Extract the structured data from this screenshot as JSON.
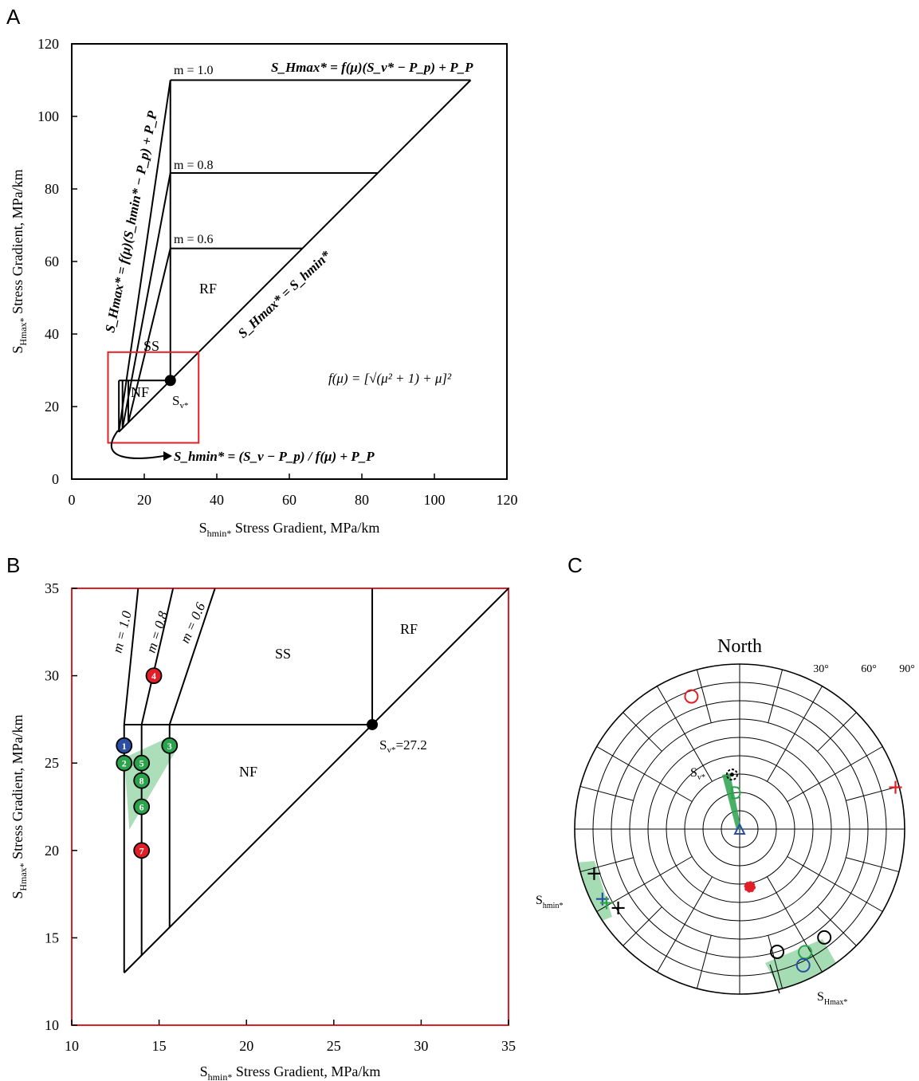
{
  "panels": {
    "A": "A",
    "B": "B",
    "C": "C"
  },
  "colors": {
    "red": "#e21f26",
    "green": "#2ba24c",
    "green_fill": "#8fd3a1",
    "blue": "#2d4fa3",
    "black": "#000000"
  },
  "chart_data": [
    {
      "panel": "A",
      "type": "line",
      "xlabel_main": "S",
      "xlabel_sub": "hmin*",
      "xlabel_rest": " Stress Gradient, MPa/km",
      "ylabel_main": "S",
      "ylabel_sub": "Hmax*",
      "ylabel_rest": " Stress Gradient, MPa/km",
      "xlim": [
        0,
        120
      ],
      "ylim": [
        0,
        120
      ],
      "xticks": [
        0,
        20,
        40,
        60,
        80,
        100,
        120
      ],
      "yticks": [
        0,
        20,
        40,
        60,
        80,
        100,
        120
      ],
      "grid": false,
      "sv_point": {
        "x": 27.2,
        "y": 27.2
      },
      "sv_label_main": "S",
      "sv_label_sub": "v*",
      "friction_lines": [
        {
          "label": "m = 1.0",
          "shmin_min": 13.0,
          "shmax_max": 110.0
        },
        {
          "label": "m = 0.8",
          "shmin_min": 14.0,
          "shmax_max": 84.4
        },
        {
          "label": "m = 0.6",
          "shmin_min": 15.6,
          "shmax_max": 63.6
        }
      ],
      "regions": [
        "RF",
        "SS",
        "NF"
      ],
      "zoom_box": {
        "x": [
          10,
          35
        ],
        "y": [
          10,
          35
        ]
      },
      "eq_top": "S_Hmax* = f(μ)(S_v* − P_p) + P_P",
      "eq_left": "S_Hmax* = f(μ)(S_hmin* − P_p) + P_P",
      "eq_diag": "S_Hmax* = S_hmin*",
      "eq_bottom": "S_hmin* = (S_v − P_p) / f(μ) + P_P",
      "eq_fmu": "f(μ) = [√(μ² + 1) + μ]²"
    },
    {
      "panel": "B",
      "type": "scatter",
      "xlabel_main": "S",
      "xlabel_sub": "hmin*",
      "xlabel_rest": " Stress Gradient, MPa/km",
      "ylabel_main": "S",
      "ylabel_sub": "Hmax*",
      "ylabel_rest": " Stress Gradient, MPa/km",
      "xlim": [
        10,
        35
      ],
      "ylim": [
        10,
        35
      ],
      "xticks": [
        10,
        15,
        20,
        25,
        30,
        35
      ],
      "yticks": [
        10,
        15,
        20,
        25,
        30,
        35
      ],
      "grid": false,
      "sv_value_label": "=27.2",
      "friction_lines": [
        {
          "label": "m = 1.0",
          "shmin_min": 13.0,
          "shmax_max": 35
        },
        {
          "label": "m = 0.8",
          "shmin_min": 14.0,
          "shmax_max": 35
        },
        {
          "label": "m = 0.6",
          "shmin_min": 15.6,
          "shmax_max": 35
        }
      ],
      "regions": [
        "SS",
        "RF",
        "NF"
      ],
      "points": [
        {
          "id": "1",
          "x": 13.0,
          "y": 26.0,
          "color": "blue"
        },
        {
          "id": "2",
          "x": 13.0,
          "y": 25.0,
          "color": "green"
        },
        {
          "id": "3",
          "x": 15.6,
          "y": 26.0,
          "color": "green"
        },
        {
          "id": "4",
          "x": 14.7,
          "y": 30.0,
          "color": "red"
        },
        {
          "id": "5",
          "x": 14.0,
          "y": 25.0,
          "color": "green"
        },
        {
          "id": "6",
          "x": 14.0,
          "y": 22.5,
          "color": "green"
        },
        {
          "id": "7",
          "x": 14.0,
          "y": 20.0,
          "color": "red"
        },
        {
          "id": "8",
          "x": 14.0,
          "y": 24.0,
          "color": "green"
        }
      ]
    },
    {
      "panel": "C",
      "type": "other",
      "title": "North",
      "ring_labels": [
        "30°",
        "60°",
        "90°"
      ],
      "sv_label_main": "S",
      "sv_label_sub": "v*",
      "shmin_label_main": "S",
      "shmin_label_sub": "hmin*",
      "shmax_label_main": "S",
      "shmax_label_sub": "Hmax*",
      "symbols": [
        {
          "type": "circle",
          "color": "red",
          "azimuth": 340,
          "plunge": 77
        },
        {
          "type": "plus",
          "color": "red",
          "azimuth": 75,
          "plunge": 88
        },
        {
          "type": "circle-dot",
          "color": "black",
          "azimuth": 352,
          "plunge": 30
        },
        {
          "type": "letter-D",
          "color": "green",
          "azimuth": 353,
          "plunge": 20
        },
        {
          "type": "plus",
          "color": "black",
          "azimuth": 253,
          "plunge": 83
        },
        {
          "type": "plus",
          "color": "blue",
          "azimuth": 243,
          "plunge": 84
        },
        {
          "type": "plus",
          "color": "green",
          "azimuth": 241,
          "plunge": 83
        },
        {
          "type": "plus",
          "color": "black",
          "azimuth": 237,
          "plunge": 79
        },
        {
          "type": "circle-x",
          "color": "red",
          "azimuth": 170,
          "plunge": 32
        },
        {
          "type": "circle",
          "color": "black",
          "azimuth": 163,
          "plunge": 70
        },
        {
          "type": "circle",
          "color": "black",
          "azimuth": 142,
          "plunge": 75
        },
        {
          "type": "circle",
          "color": "green",
          "azimuth": 152,
          "plunge": 76
        },
        {
          "type": "circle",
          "color": "blue",
          "azimuth": 155,
          "plunge": 82
        }
      ]
    }
  ]
}
